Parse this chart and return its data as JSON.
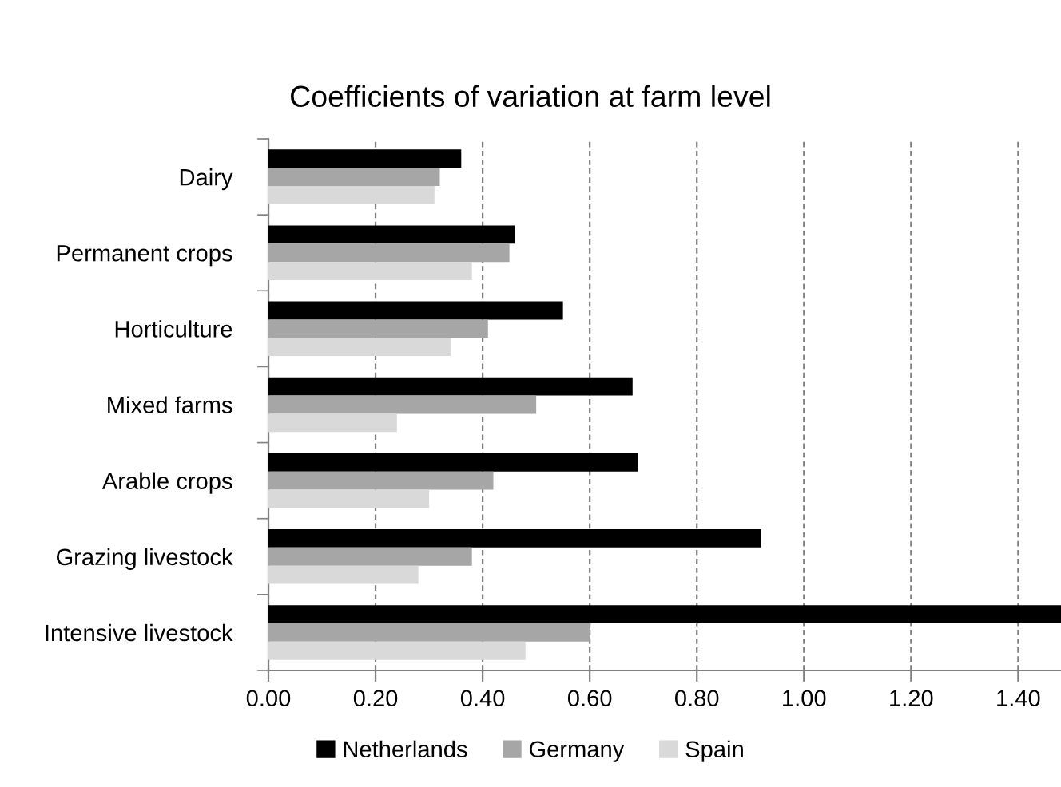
{
  "chart_data": {
    "type": "bar",
    "orientation": "horizontal",
    "title": "Coefficients of variation at farm level",
    "categories": [
      "Dairy",
      "Permanent crops",
      "Horticulture",
      "Mixed farms",
      "Arable crops",
      "Grazing livestock",
      "Intensive livestock"
    ],
    "series": [
      {
        "name": "Netherlands",
        "color": "#000000",
        "values": [
          0.36,
          0.46,
          0.55,
          0.68,
          0.69,
          0.92,
          1.48
        ]
      },
      {
        "name": "Germany",
        "color": "#a6a6a6",
        "values": [
          0.32,
          0.45,
          0.41,
          0.5,
          0.42,
          0.38,
          0.6
        ]
      },
      {
        "name": "Spain",
        "color": "#d9d9d9",
        "values": [
          0.31,
          0.38,
          0.34,
          0.24,
          0.3,
          0.28,
          0.48
        ]
      }
    ],
    "xlim": [
      0,
      1.48
    ],
    "xticks": [
      {
        "value": 0,
        "label": "0.00"
      },
      {
        "value": 0.2,
        "label": "0.20"
      },
      {
        "value": 0.4,
        "label": "0.40"
      },
      {
        "value": 0.6,
        "label": "0.60"
      },
      {
        "value": 0.8,
        "label": "0.80"
      },
      {
        "value": 1.0,
        "label": "1.00"
      },
      {
        "value": 1.2,
        "label": "1.20"
      },
      {
        "value": 1.4,
        "label": "1.40"
      }
    ],
    "grid": "x",
    "legend": "bottom"
  }
}
